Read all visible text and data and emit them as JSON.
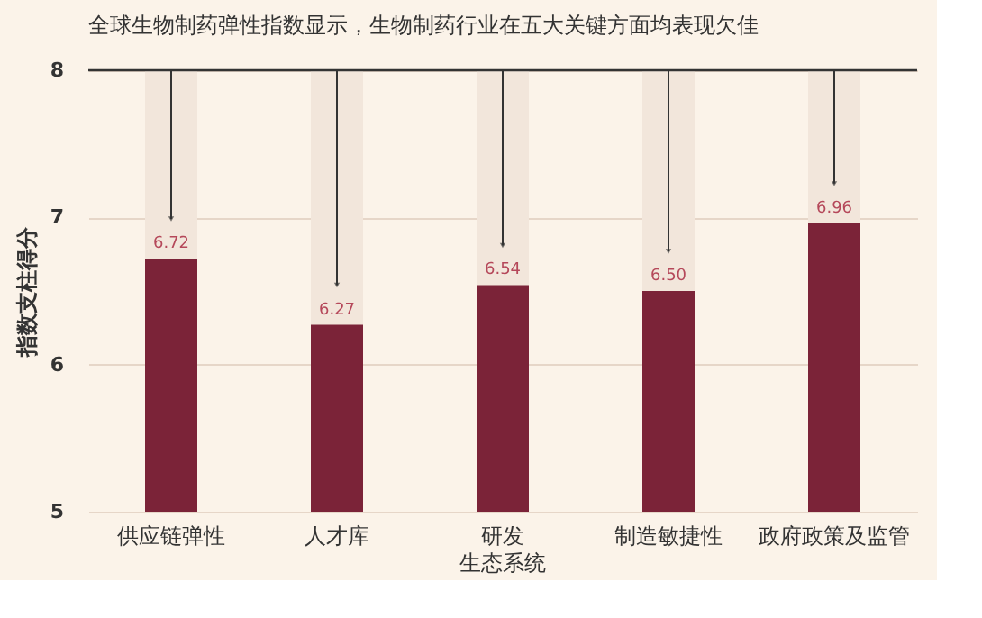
{
  "chart_data": {
    "type": "bar",
    "title": "全球生物制药弹性指数显示，生物制药行业在五大关键方面均表现欠佳",
    "ylabel": "指数支柱得分",
    "categories": [
      "供应链弹性",
      "人才库",
      "研发生态系统",
      "制造敏捷性",
      "政府政策及监管"
    ],
    "series": [
      {
        "color": "#7b2338",
        "values": [
          6.72,
          6.27,
          6.54,
          6.5,
          6.96
        ]
      }
    ],
    "ylim": [
      5,
      8
    ],
    "yticks": [
      5,
      6,
      7,
      8
    ],
    "grid": "y",
    "value_labels": [
      "6.72",
      "6.27",
      "6.54",
      "6.50",
      "6.96"
    ],
    "ref_lines": [
      {
        "axis": "y",
        "value": 8,
        "color": "#333333"
      }
    ]
  }
}
